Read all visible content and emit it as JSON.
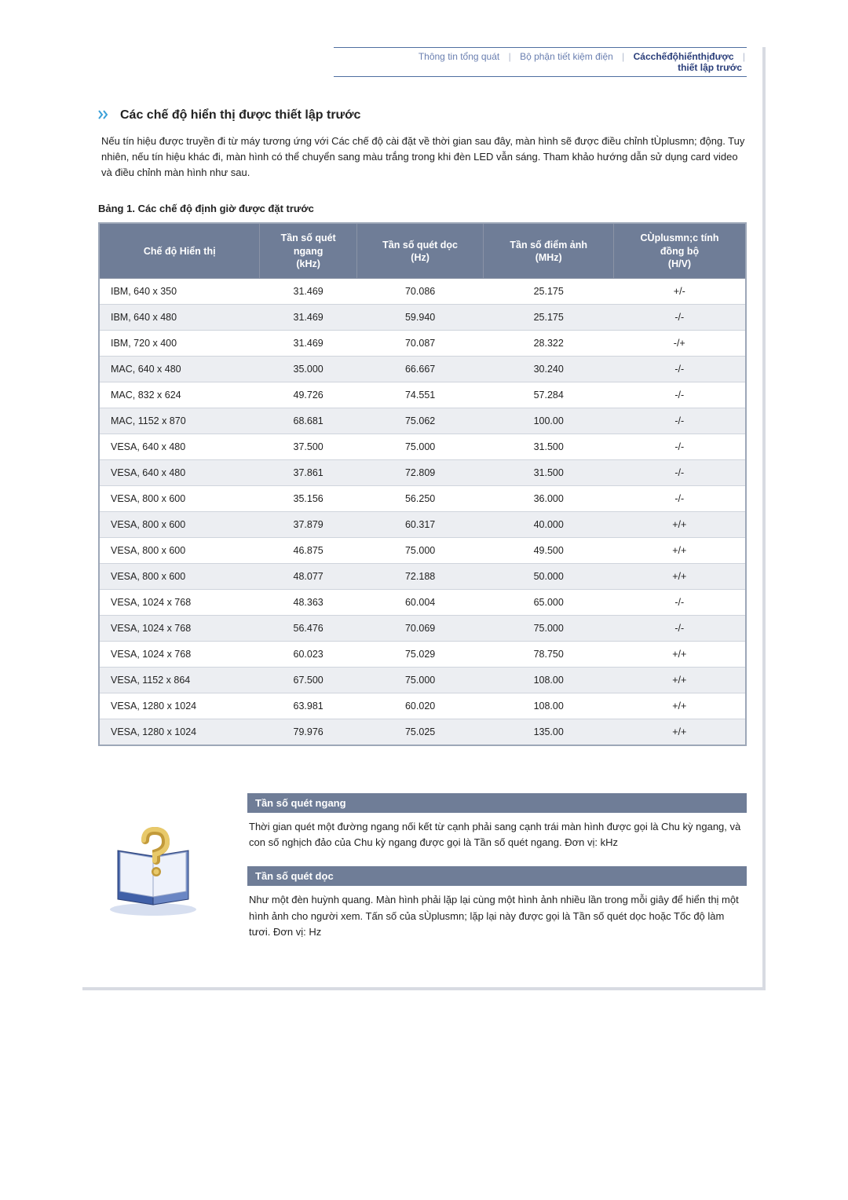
{
  "nav": {
    "item1": "Thông tin tổng quát",
    "item2": "Bộ phận tiết kiệm điện",
    "item3": "Cácchếđộhiểnthịđược",
    "item3_sub": "thiết lập trước"
  },
  "heading": "Các chế độ hiển thị được thiết lập trước",
  "intro": "Nếu tín hiệu được truyền đi từ máy tương ứng với Các chế độ cài đặt về thời gian sau đây, màn hình sẽ được điều chỉnh tÙplusmn; động. Tuy nhiên, nếu tín hiệu khác đi, màn hình có thể chuyển sang màu trắng trong khi đèn LED vẫn sáng. Tham khảo hướng dẫn sử dụng card video và điều chỉnh màn hình như sau.",
  "table_caption": "Bảng 1. Các chế độ định giờ được đặt trước",
  "columns": {
    "c1": "Chế độ Hiển thị",
    "c2_l1": "Tần số quét",
    "c2_l2": "ngang",
    "c2_l3": "(kHz)",
    "c3_l1": "Tần số quét dọc",
    "c3_l2": "(Hz)",
    "c4_l1": "Tần số điểm ảnh",
    "c4_l2": "(MHz)",
    "c5_l1": "CÙplusmn;c tính",
    "c5_l2": "đồng bộ",
    "c5_l3": "(H/V)"
  },
  "rows": [
    {
      "mode": "IBM, 640 x 350",
      "h": "31.469",
      "v": "70.086",
      "p": "25.175",
      "s": "+/-"
    },
    {
      "mode": "IBM, 640 x 480",
      "h": "31.469",
      "v": "59.940",
      "p": "25.175",
      "s": "-/-"
    },
    {
      "mode": "IBM, 720 x 400",
      "h": "31.469",
      "v": "70.087",
      "p": "28.322",
      "s": "-/+"
    },
    {
      "mode": "MAC, 640 x 480",
      "h": "35.000",
      "v": "66.667",
      "p": "30.240",
      "s": "-/-"
    },
    {
      "mode": "MAC, 832 x 624",
      "h": "49.726",
      "v": "74.551",
      "p": "57.284",
      "s": "-/-"
    },
    {
      "mode": "MAC, 1152 x 870",
      "h": "68.681",
      "v": "75.062",
      "p": "100.00",
      "s": "-/-"
    },
    {
      "mode": "VESA, 640 x 480",
      "h": "37.500",
      "v": "75.000",
      "p": "31.500",
      "s": "-/-"
    },
    {
      "mode": "VESA, 640 x 480",
      "h": "37.861",
      "v": "72.809",
      "p": "31.500",
      "s": "-/-"
    },
    {
      "mode": "VESA, 800 x 600",
      "h": "35.156",
      "v": "56.250",
      "p": "36.000",
      "s": "-/-"
    },
    {
      "mode": "VESA, 800 x 600",
      "h": "37.879",
      "v": "60.317",
      "p": "40.000",
      "s": "+/+"
    },
    {
      "mode": "VESA, 800 x 600",
      "h": "46.875",
      "v": "75.000",
      "p": "49.500",
      "s": "+/+"
    },
    {
      "mode": "VESA, 800 x 600",
      "h": "48.077",
      "v": "72.188",
      "p": "50.000",
      "s": "+/+"
    },
    {
      "mode": "VESA, 1024 x 768",
      "h": "48.363",
      "v": "60.004",
      "p": "65.000",
      "s": "-/-"
    },
    {
      "mode": "VESA, 1024 x 768",
      "h": "56.476",
      "v": "70.069",
      "p": "75.000",
      "s": "-/-"
    },
    {
      "mode": "VESA, 1024 x 768",
      "h": "60.023",
      "v": "75.029",
      "p": "78.750",
      "s": "+/+"
    },
    {
      "mode": "VESA, 1152 x 864",
      "h": "67.500",
      "v": "75.000",
      "p": "108.00",
      "s": "+/+"
    },
    {
      "mode": "VESA, 1280 x 1024",
      "h": "63.981",
      "v": "60.020",
      "p": "108.00",
      "s": "+/+"
    },
    {
      "mode": "VESA, 1280 x 1024",
      "h": "79.976",
      "v": "75.025",
      "p": "135.00",
      "s": "+/+"
    }
  ],
  "info1_title": "Tần số quét ngang",
  "info1_text": "Thời gian quét một đường ngang nối kết từ cạnh phải sang cạnh trái màn hình được gọi là Chu kỳ ngang, và con số nghịch đảo của Chu kỳ ngang được gọi là Tần số quét ngang. Đơn vị: kHz",
  "info2_title": "Tần số quét dọc",
  "info2_text": "Như một đèn huỳnh quang. Màn hình phải lặp lại cùng một hình ảnh nhiều lần trong mỗi giây để hiển thị một hình ảnh cho người xem. Tấn số của sÙplusmn; lặp lại này được gọi là Tần số quét dọc hoặc Tốc độ làm tươi. Đơn vị: Hz",
  "colors": {
    "header_bg": "#6f7d97",
    "row_alt": "#eceef2",
    "border": "#9da7b8",
    "nav_link": "#6a7fb0",
    "nav_active": "#2a3e7a"
  }
}
